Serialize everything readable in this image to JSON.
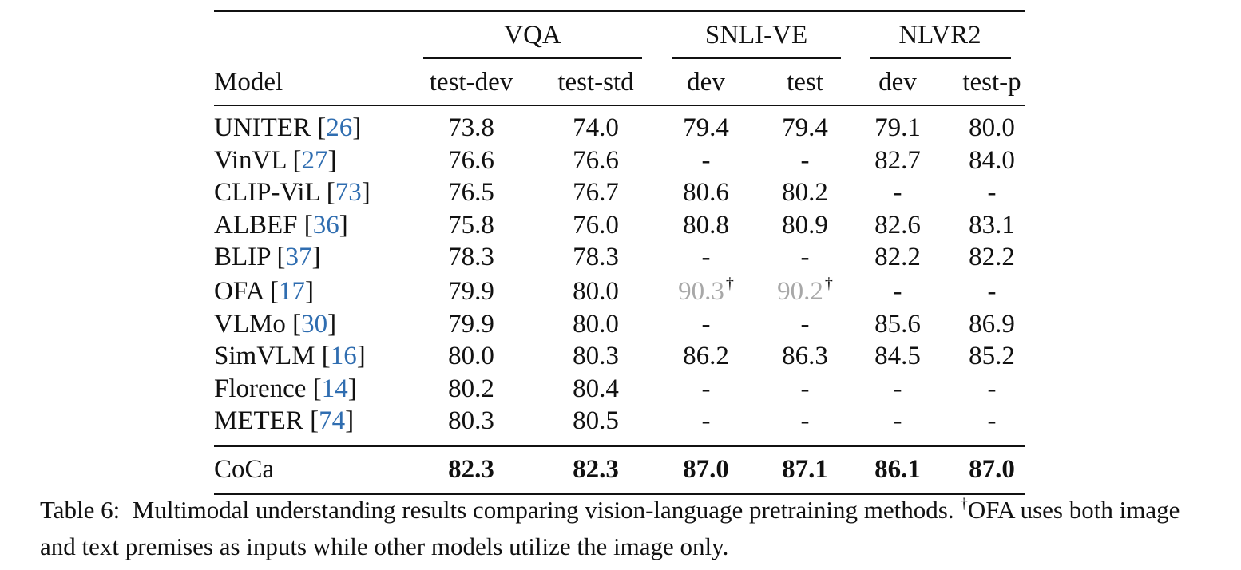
{
  "table": {
    "groups": [
      {
        "label": "VQA"
      },
      {
        "label": "SNLI-VE"
      },
      {
        "label": "NLVR2"
      }
    ],
    "model_header": "Model",
    "columns": [
      "test-dev",
      "test-std",
      "dev",
      "test",
      "dev",
      "test-p"
    ],
    "rows": [
      {
        "model": "UNITER",
        "ref": "26",
        "values": [
          "73.8",
          "74.0",
          "79.4",
          "79.4",
          "79.1",
          "80.0"
        ]
      },
      {
        "model": "VinVL",
        "ref": "27",
        "values": [
          "76.6",
          "76.6",
          "-",
          "-",
          "82.7",
          "84.0"
        ]
      },
      {
        "model": "CLIP-ViL",
        "ref": "73",
        "values": [
          "76.5",
          "76.7",
          "80.6",
          "80.2",
          "-",
          "-"
        ]
      },
      {
        "model": "ALBEF",
        "ref": "36",
        "values": [
          "75.8",
          "76.0",
          "80.8",
          "80.9",
          "82.6",
          "83.1"
        ]
      },
      {
        "model": "BLIP",
        "ref": "37",
        "values": [
          "78.3",
          "78.3",
          "-",
          "-",
          "82.2",
          "82.2"
        ]
      },
      {
        "model": "OFA",
        "ref": "17",
        "values": [
          "79.9",
          "80.0",
          "90.3",
          "90.2",
          "-",
          "-"
        ],
        "marks": [
          "",
          "",
          "†",
          "†",
          "",
          ""
        ],
        "gray": [
          false,
          false,
          true,
          true,
          false,
          false
        ]
      },
      {
        "model": "VLMo",
        "ref": "30",
        "values": [
          "79.9",
          "80.0",
          "-",
          "-",
          "85.6",
          "86.9"
        ]
      },
      {
        "model": "SimVLM",
        "ref": "16",
        "values": [
          "80.0",
          "80.3",
          "86.2",
          "86.3",
          "84.5",
          "85.2"
        ]
      },
      {
        "model": "Florence",
        "ref": "14",
        "values": [
          "80.2",
          "80.4",
          "-",
          "-",
          "-",
          "-"
        ]
      },
      {
        "model": "METER",
        "ref": "74",
        "values": [
          "80.3",
          "80.5",
          "-",
          "-",
          "-",
          "-"
        ]
      }
    ],
    "final_row": {
      "model": "CoCa",
      "values": [
        "82.3",
        "82.3",
        "87.0",
        "87.1",
        "86.1",
        "87.0"
      ]
    }
  },
  "caption": {
    "label": "Table 6:",
    "text_before_mark": "Multimodal understanding results comparing vision-language pretraining methods.",
    "mark": "†",
    "text_after_mark": "OFA uses both image and text premises as inputs while other models utilize the image only."
  }
}
